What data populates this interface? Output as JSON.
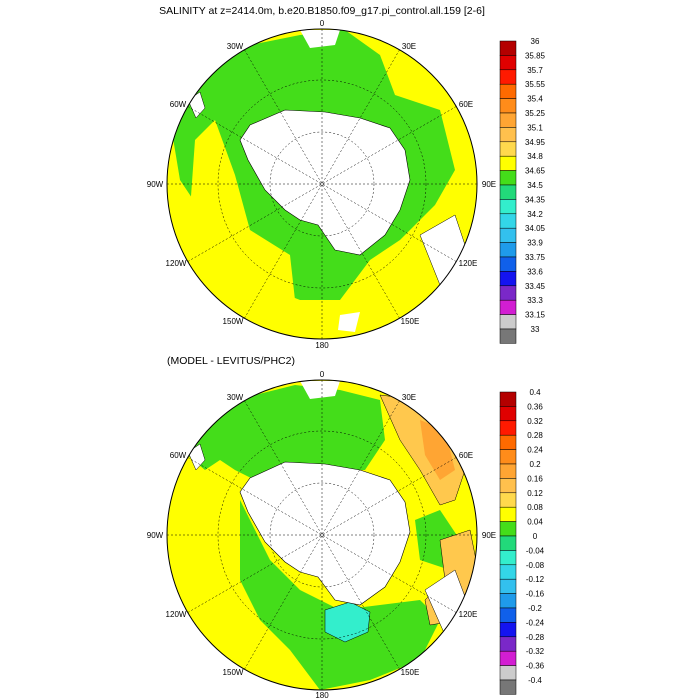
{
  "panels": [
    {
      "id": "top",
      "title": "SALINITY at z=2414.0m, b.e20.B1850.f09_g17.pi_control.all.159 [2-6]",
      "lon_labels": [
        "0",
        "30E",
        "60E",
        "90E",
        "120E",
        "150E",
        "180",
        "150W",
        "120W",
        "90W",
        "60W",
        "30W"
      ],
      "colorbar": {
        "labels": [
          "36",
          "35.85",
          "35.7",
          "35.55",
          "35.4",
          "35.25",
          "35.1",
          "34.95",
          "34.8",
          "34.65",
          "34.5",
          "34.35",
          "34.2",
          "34.05",
          "33.9",
          "33.75",
          "33.6",
          "33.45",
          "33.3",
          "33.15",
          "33"
        ],
        "colors": [
          "#b40000",
          "#e00000",
          "#ff1a00",
          "#ff6a00",
          "#ff8c1a",
          "#ffa533",
          "#ffc04d",
          "#ffd94d",
          "#ffff00",
          "#44dd1a",
          "#22d97a",
          "#33eecc",
          "#33d6e8",
          "#33c0ee",
          "#1f9bea",
          "#1060ea",
          "#1414f0",
          "#7a28c8",
          "#d21ed2",
          "#cccccc",
          "#777777"
        ]
      }
    },
    {
      "id": "bottom",
      "title": "(MODEL - LEVITUS/PHC2)",
      "lon_labels": [
        "0",
        "30E",
        "60E",
        "90E",
        "120E",
        "150E",
        "180",
        "150W",
        "120W",
        "90W",
        "60W",
        "30W"
      ],
      "colorbar": {
        "labels": [
          "0.4",
          "0.36",
          "0.32",
          "0.28",
          "0.24",
          "0.2",
          "0.16",
          "0.12",
          "0.08",
          "0.04",
          "0",
          "-0.04",
          "-0.08",
          "-0.12",
          "-0.16",
          "-0.2",
          "-0.24",
          "-0.28",
          "-0.32",
          "-0.36",
          "-0.4"
        ],
        "colors": [
          "#b40000",
          "#e00000",
          "#ff1a00",
          "#ff6a00",
          "#ff8c1a",
          "#ffa533",
          "#ffc04d",
          "#ffd94d",
          "#ffff00",
          "#44dd1a",
          "#22d97a",
          "#33eecc",
          "#33d6e8",
          "#33c0ee",
          "#1f9bea",
          "#1060ea",
          "#1414f0",
          "#7a28c8",
          "#d21ed2",
          "#cccccc",
          "#777777"
        ]
      }
    }
  ],
  "palette": {
    "green": "#44dd1a",
    "yellow": "#ffff00",
    "light_orange": "#ffc84d",
    "orange": "#ffa533",
    "cyan": "#33eecc",
    "land": "#ffffff"
  }
}
